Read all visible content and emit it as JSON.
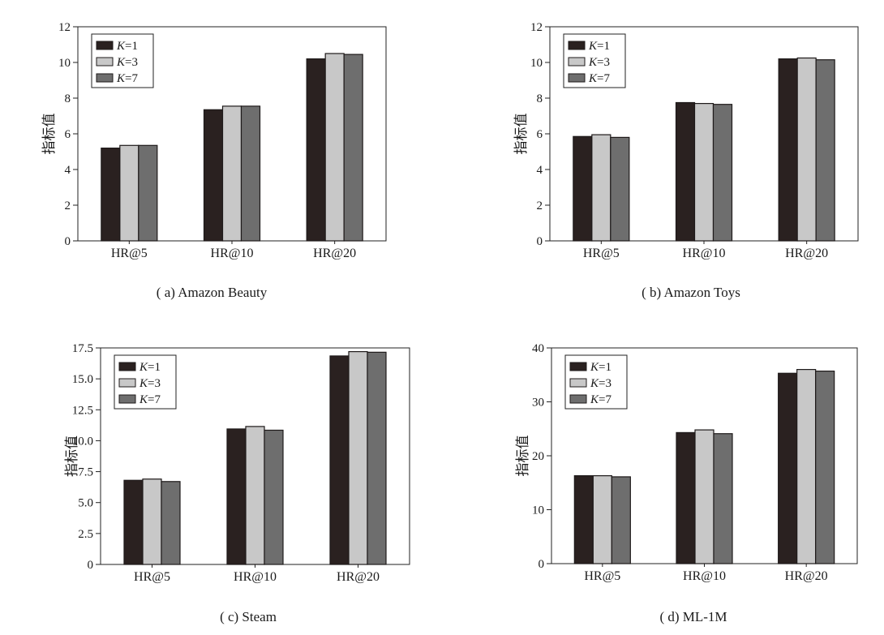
{
  "figure": {
    "colors": {
      "K=1": "#2a2120",
      "K=3": "#c8c8c8",
      "K=7": "#6e6e6e"
    }
  },
  "chart_data": [
    {
      "type": "bar",
      "caption": "( a) Amazon Beauty",
      "ylabel": "指标值",
      "categories": [
        "HR@5",
        "HR@10",
        "HR@20"
      ],
      "series": [
        {
          "name": "K=1",
          "values": [
            5.2,
            7.35,
            10.2
          ]
        },
        {
          "name": "K=3",
          "values": [
            5.35,
            7.55,
            10.5
          ]
        },
        {
          "name": "K=7",
          "values": [
            5.35,
            7.55,
            10.45
          ]
        }
      ],
      "ylim": [
        0,
        12
      ],
      "yticks": [
        0,
        2,
        4,
        6,
        8,
        10,
        12
      ],
      "ytick_labels": [
        "0",
        "2",
        "4",
        "6",
        "8",
        "10",
        "12"
      ],
      "legend_position": "top-left"
    },
    {
      "type": "bar",
      "caption": "( b) Amazon Toys",
      "ylabel": "指标值",
      "categories": [
        "HR@5",
        "HR@10",
        "HR@20"
      ],
      "series": [
        {
          "name": "K=1",
          "values": [
            5.85,
            7.75,
            10.2
          ]
        },
        {
          "name": "K=3",
          "values": [
            5.95,
            7.7,
            10.25
          ]
        },
        {
          "name": "K=7",
          "values": [
            5.8,
            7.65,
            10.15
          ]
        }
      ],
      "ylim": [
        0,
        12
      ],
      "yticks": [
        0,
        2,
        4,
        6,
        8,
        10,
        12
      ],
      "ytick_labels": [
        "0",
        "2",
        "4",
        "6",
        "8",
        "10",
        "12"
      ],
      "legend_position": "top-left"
    },
    {
      "type": "bar",
      "caption": "( c) Steam",
      "ylabel": "指标值",
      "categories": [
        "HR@5",
        "HR@10",
        "HR@20"
      ],
      "series": [
        {
          "name": "K=1",
          "values": [
            6.8,
            10.95,
            16.85
          ]
        },
        {
          "name": "K=3",
          "values": [
            6.9,
            11.15,
            17.2
          ]
        },
        {
          "name": "K=7",
          "values": [
            6.7,
            10.85,
            17.15
          ]
        }
      ],
      "ylim": [
        0,
        17.5
      ],
      "yticks": [
        0,
        2.5,
        5,
        7.5,
        10,
        12.5,
        15,
        17.5
      ],
      "ytick_labels": [
        "0",
        "2.5",
        "5.0",
        "7.5",
        "10.0",
        "12.5",
        "15.0",
        "17.5"
      ],
      "legend_position": "top-left"
    },
    {
      "type": "bar",
      "caption": "( d) ML-1M",
      "ylabel": "指标值",
      "categories": [
        "HR@5",
        "HR@10",
        "HR@20"
      ],
      "series": [
        {
          "name": "K=1",
          "values": [
            16.3,
            24.3,
            35.3
          ]
        },
        {
          "name": "K=3",
          "values": [
            16.3,
            24.8,
            36.0
          ]
        },
        {
          "name": "K=7",
          "values": [
            16.1,
            24.1,
            35.7
          ]
        }
      ],
      "ylim": [
        0,
        40
      ],
      "yticks": [
        0,
        10,
        20,
        30,
        40
      ],
      "ytick_labels": [
        "0",
        "10",
        "20",
        "30",
        "40"
      ],
      "legend_position": "top-left"
    }
  ]
}
